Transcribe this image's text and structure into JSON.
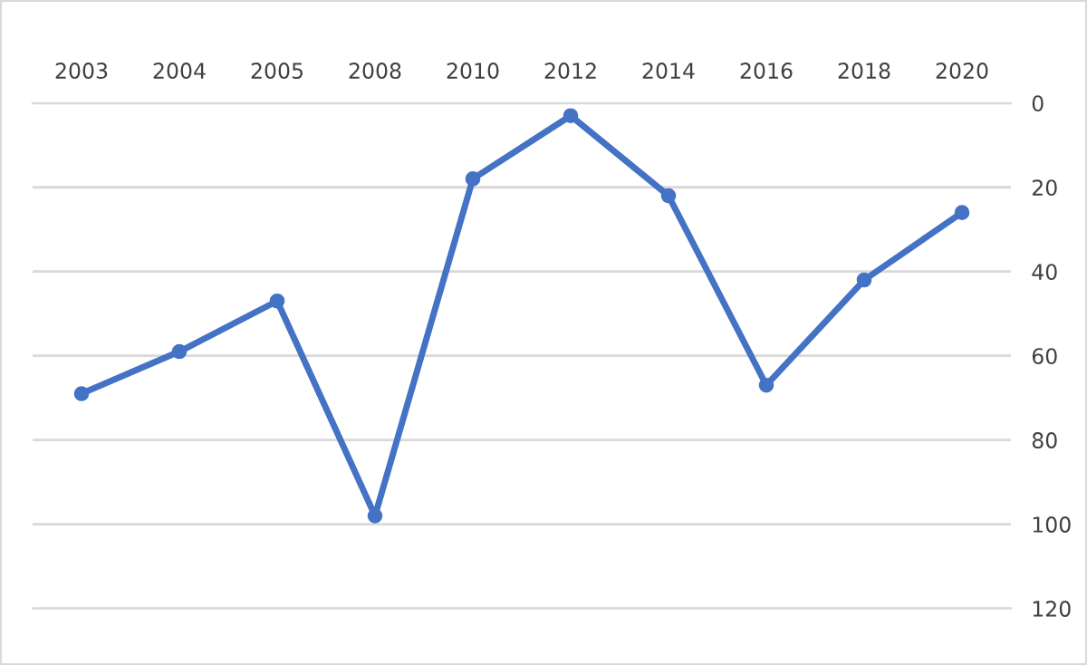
{
  "chart_data": {
    "type": "line",
    "categories": [
      "2003",
      "2004",
      "2005",
      "2008",
      "2010",
      "2012",
      "2014",
      "2016",
      "2018",
      "2020"
    ],
    "series": [
      {
        "color": "#4472c4",
        "values": [
          69,
          59,
          47,
          98,
          18,
          3,
          22,
          67,
          42,
          26
        ]
      }
    ],
    "ylim": [
      120,
      0
    ],
    "yticks": [
      0,
      20,
      40,
      60,
      80,
      100,
      120
    ],
    "grid": "y",
    "marker": "circle",
    "line_style": "solid"
  }
}
